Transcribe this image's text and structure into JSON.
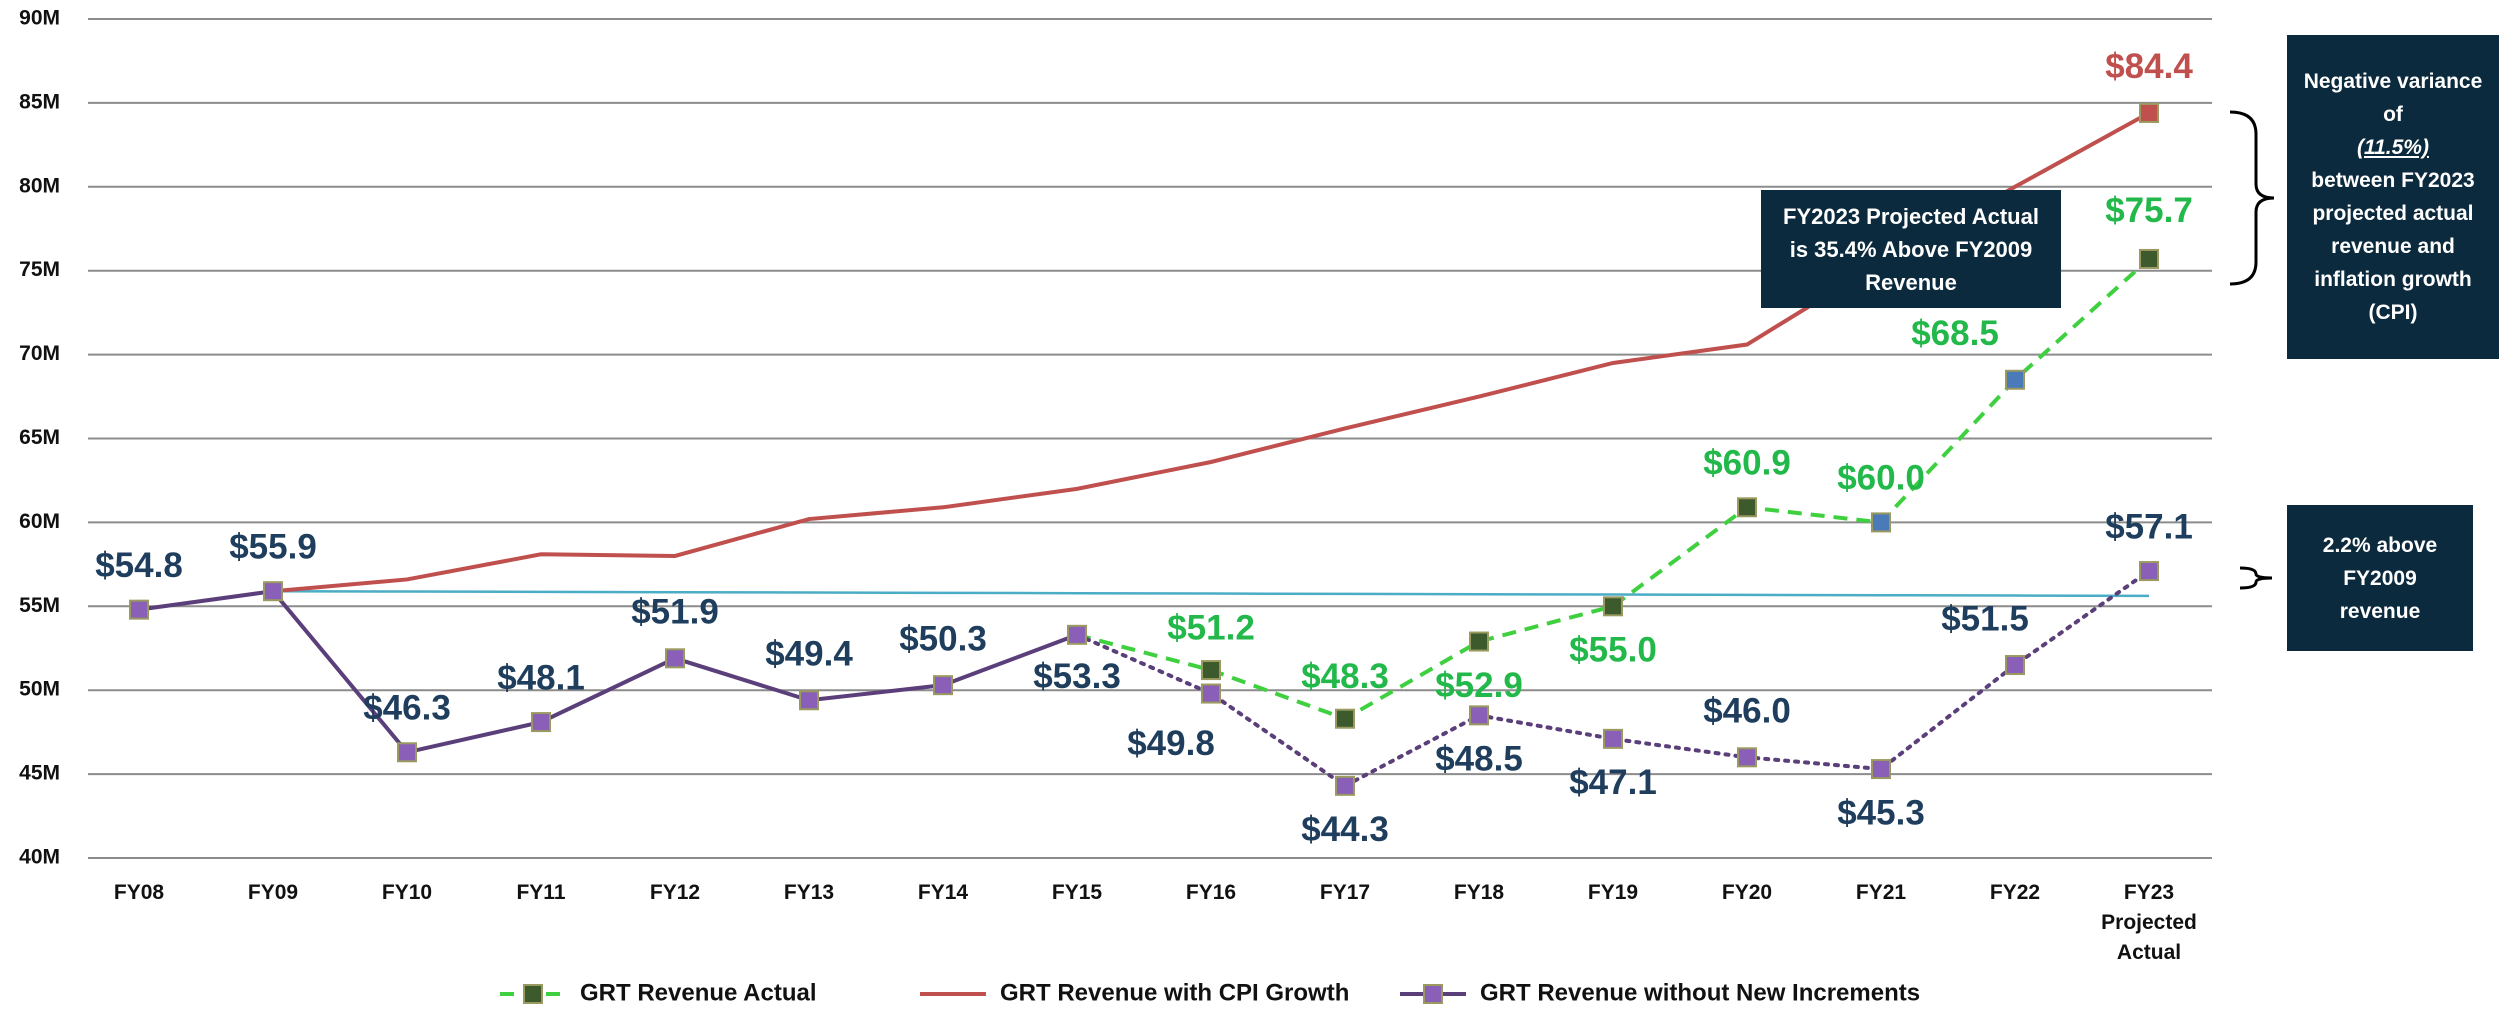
{
  "chart_data": {
    "type": "line",
    "categories": [
      "FY08",
      "FY09",
      "FY10",
      "FY11",
      "FY12",
      "FY13",
      "FY14",
      "FY15",
      "FY16",
      "FY17",
      "FY18",
      "FY19",
      "FY20",
      "FY21",
      "FY22",
      "FY23 Projected Actual"
    ],
    "ylim": [
      40,
      90
    ],
    "yticks": [
      {
        "value": 40,
        "label": "40M"
      },
      {
        "value": 45,
        "label": "45M"
      },
      {
        "value": 50,
        "label": "50M"
      },
      {
        "value": 55,
        "label": "55M"
      },
      {
        "value": 60,
        "label": "60M"
      },
      {
        "value": 65,
        "label": "65M"
      },
      {
        "value": 70,
        "label": "70M"
      },
      {
        "value": 75,
        "label": "75M"
      },
      {
        "value": 80,
        "label": "80M"
      },
      {
        "value": 85,
        "label": "85M"
      },
      {
        "value": 90,
        "label": "90M"
      }
    ],
    "grid": true,
    "legend": "bottom",
    "series": [
      {
        "name": "GRT Revenue Actual",
        "color": "#3fd03f",
        "label_color": "#22b84a",
        "style": "dashed",
        "marker_colors": [
          null,
          null,
          null,
          null,
          null,
          null,
          null,
          "#3d5a2c",
          "#3d5a2c",
          "#3d5a2c",
          "#3d5a2c",
          "#3d5a2c",
          "#3d5a2c",
          "#4a7ab8",
          "#4a7ab8",
          "#3d5a2c"
        ],
        "values": [
          null,
          null,
          null,
          null,
          null,
          null,
          null,
          53.3,
          51.2,
          48.3,
          52.9,
          55.0,
          60.9,
          60.0,
          68.5,
          75.7
        ],
        "value_labels": [
          null,
          null,
          null,
          null,
          null,
          null,
          null,
          null,
          "$51.2",
          "$48.3",
          "$52.9",
          "$55.0",
          "$60.9",
          "$60.0",
          "$68.5",
          "$75.7"
        ]
      },
      {
        "name": "GRT Revenue with CPI Growth",
        "color": "#c0504d",
        "label_color": "#c0504d",
        "style": "solid",
        "markers": "last",
        "values": [
          null,
          55.9,
          56.6,
          58.1,
          58.0,
          60.2,
          60.9,
          62.0,
          63.6,
          65.6,
          67.5,
          69.5,
          70.6,
          75.5,
          80.0,
          84.4
        ],
        "value_labels": [
          null,
          null,
          null,
          null,
          null,
          null,
          null,
          null,
          null,
          null,
          null,
          null,
          null,
          null,
          null,
          "$84.4"
        ]
      },
      {
        "name": "GRT Revenue without New Increments",
        "color": "#5b3f7a",
        "marker_color": "#8a5fb8",
        "label_color": "#1f3d5c",
        "style": "solid",
        "dotted_after": "FY15",
        "values": [
          54.8,
          55.9,
          46.3,
          48.1,
          51.9,
          49.4,
          50.3,
          53.3,
          49.8,
          44.3,
          48.5,
          47.1,
          46.0,
          45.3,
          51.5,
          57.1
        ],
        "value_labels": [
          "$54.8",
          "$55.9",
          "$46.3",
          "$48.1",
          "$51.9",
          "$49.4",
          "$50.3",
          "$53.3",
          "$49.8",
          "$44.3",
          "$48.5",
          "$47.1",
          "$46.0",
          "$45.3",
          "$51.5",
          "$57.1"
        ]
      },
      {
        "color": "#4bacc6",
        "style": "thin",
        "markers": "none",
        "values": [
          null,
          55.9,
          55.88,
          55.86,
          55.84,
          55.82,
          55.8,
          55.78,
          55.76,
          55.74,
          55.72,
          55.7,
          55.68,
          55.66,
          55.64,
          55.62
        ]
      }
    ],
    "annotations": [
      {
        "text": "FY2023 Projected Actual is 35.4% Above FY2009 Revenue"
      },
      {
        "parts": [
          "Negative variance of",
          "(11.5%)",
          "between FY2023 projected actual revenue and inflation growth (CPI)"
        ]
      },
      {
        "text": "2.2% above FY2009 revenue"
      }
    ]
  }
}
